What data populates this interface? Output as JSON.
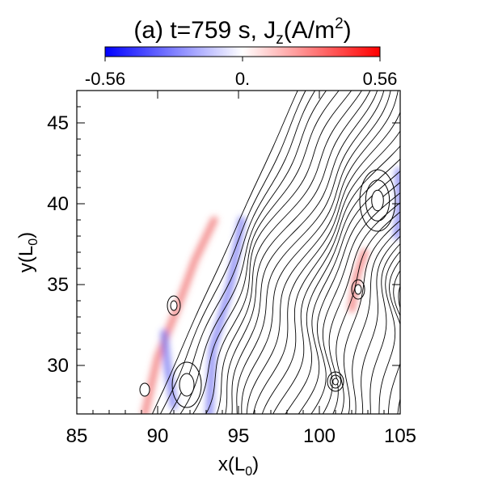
{
  "chart_data": {
    "type": "heatmap",
    "title_prefix": "(a) t=759 s, J",
    "title_sub": "z",
    "title_suffix": "(A/m",
    "title_sup": "2",
    "title_close": ")",
    "colorbar": {
      "min": -0.56,
      "max": 0.56,
      "tick_labels": [
        "-0.56",
        "0.",
        "0.56"
      ],
      "colors": [
        "#0000ff",
        "#ffffff",
        "#ff0000"
      ]
    },
    "xlabel_main": "x(L",
    "xlabel_sub": "0",
    "xlabel_close": ")",
    "ylabel_main": "y(L",
    "ylabel_sub": "0",
    "ylabel_close": ")",
    "xlim": [
      85,
      105
    ],
    "ylim": [
      27,
      47
    ],
    "x_ticks": [
      85,
      90,
      95,
      100,
      105
    ],
    "y_ticks": [
      30,
      35,
      40,
      45
    ],
    "x_tick_labels": [
      "85",
      "90",
      "95",
      "100",
      "105"
    ],
    "y_tick_labels": [
      "30",
      "35",
      "40",
      "45"
    ],
    "grid": false,
    "contour_color": "#000000",
    "magnetic_islands": [
      {
        "x": 103.6,
        "y": 40.2,
        "rx": 1.1,
        "ry": 1.9,
        "rings": 3
      },
      {
        "x": 101.0,
        "y": 29.0,
        "rx": 0.5,
        "ry": 0.6,
        "rings": 3
      },
      {
        "x": 102.4,
        "y": 34.7,
        "rx": 0.4,
        "ry": 0.6,
        "rings": 2
      },
      {
        "x": 91.8,
        "y": 28.8,
        "rx": 0.9,
        "ry": 1.4,
        "rings": 2
      },
      {
        "x": 91.0,
        "y": 33.7,
        "rx": 0.4,
        "ry": 0.6,
        "rings": 2
      },
      {
        "x": 89.2,
        "y": 28.5,
        "rx": 0.3,
        "ry": 0.4,
        "rings": 1
      }
    ],
    "current_sheets": [
      {
        "sign": "positive",
        "points": [
          [
            89.2,
            27
          ],
          [
            90.0,
            30.5
          ],
          [
            91.2,
            33.5
          ],
          [
            92.3,
            36.5
          ],
          [
            93.5,
            39
          ]
        ]
      },
      {
        "sign": "negative",
        "points": [
          [
            93.2,
            27
          ],
          [
            93.4,
            31
          ],
          [
            94.5,
            35
          ],
          [
            95.2,
            39
          ]
        ]
      },
      {
        "sign": "positive",
        "points": [
          [
            102.0,
            33.5
          ],
          [
            102.3,
            35.5
          ],
          [
            102.8,
            37.0
          ]
        ]
      },
      {
        "sign": "negative",
        "points": [
          [
            104.8,
            38.0
          ],
          [
            105.0,
            40.0
          ],
          [
            104.9,
            42.0
          ]
        ]
      },
      {
        "sign": "negative",
        "points": [
          [
            91.0,
            27.5
          ],
          [
            90.6,
            30.0
          ],
          [
            90.4,
            32.0
          ]
        ]
      }
    ]
  }
}
